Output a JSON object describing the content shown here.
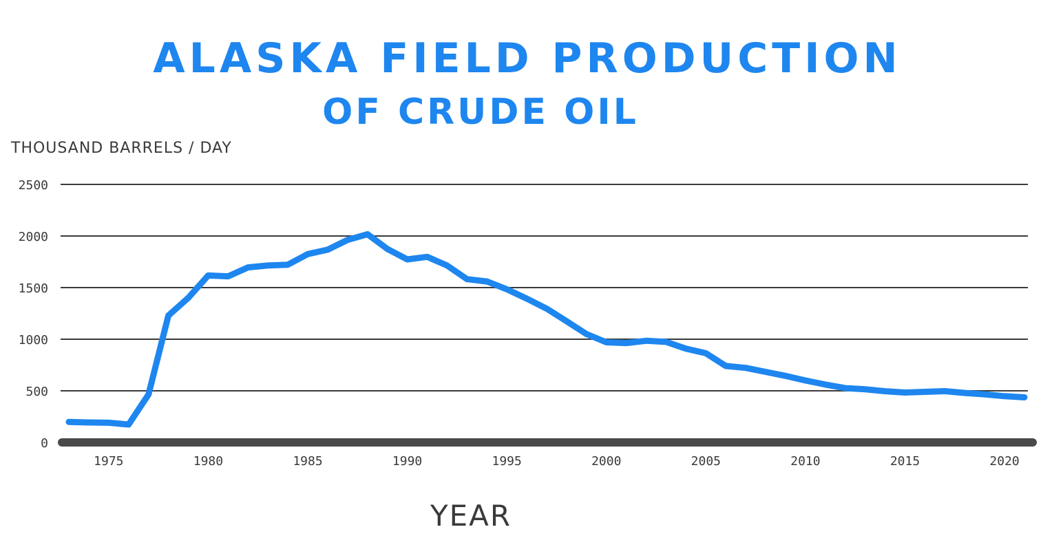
{
  "chart_data": {
    "type": "line",
    "title": "ALASKA FIELD PRODUCTION",
    "subtitle": "OF CRUDE OIL",
    "ylabel": "THOUSAND BARRELS / DAY",
    "xlabel": "YEAR",
    "ylim": [
      0,
      2500
    ],
    "xlim": [
      1973,
      2021
    ],
    "yticks": [
      0,
      500,
      1000,
      1500,
      2000,
      2500
    ],
    "xticks": [
      1975,
      1980,
      1985,
      1990,
      1995,
      2000,
      2005,
      2010,
      2015,
      2020
    ],
    "grid": true,
    "colors": {
      "series": "#1e86ef",
      "axis": "#4a4a4a",
      "grid": "#3a3a3a"
    },
    "series": [
      {
        "x": [
          1973,
          1974,
          1975,
          1976,
          1977,
          1978,
          1979,
          1980,
          1981,
          1982,
          1983,
          1984,
          1985,
          1986,
          1987,
          1988,
          1989,
          1990,
          1991,
          1992,
          1993,
          1994,
          1995,
          1996,
          1997,
          1998,
          1999,
          2000,
          2001,
          2002,
          2003,
          2004,
          2005,
          2006,
          2007,
          2008,
          2009,
          2010,
          2011,
          2012,
          2013,
          2014,
          2015,
          2016,
          2017,
          2018,
          2019,
          2020,
          2021
        ],
        "values": [
          198,
          193,
          191,
          173,
          464,
          1229,
          1401,
          1617,
          1609,
          1696,
          1714,
          1722,
          1825,
          1867,
          1962,
          2017,
          1874,
          1773,
          1798,
          1714,
          1582,
          1559,
          1484,
          1393,
          1296,
          1175,
          1050,
          970,
          963,
          985,
          974,
          908,
          864,
          741,
          722,
          683,
          645,
          600,
          561,
          526,
          515,
          496,
          483,
          490,
          497,
          479,
          466,
          448,
          437
        ]
      }
    ]
  }
}
